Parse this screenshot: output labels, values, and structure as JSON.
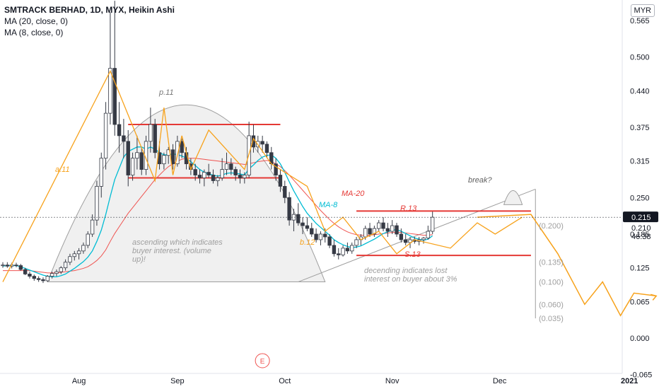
{
  "legend": {
    "title": "SMTRACK BERHAD, 1D, MYX, Heikin Ashi",
    "ma20": "MA (20, close, 0)",
    "ma8": "MA (8, close, 0)"
  },
  "currency_badge": "MYR",
  "price_labels": {
    "last_price": "0.215",
    "ma_value": "0.210",
    "countdown": "46:38"
  },
  "event_marker": "E",
  "colors": {
    "up_candle": "#ffffff",
    "down_candle": "#363a45",
    "ma8": "#00bcd4",
    "ma20": "#ef5350",
    "annotation_orange": "#f7a21b",
    "level_red": "#e53935",
    "gray": "#9e9e9e"
  },
  "chart_data": {
    "type": "candlestick",
    "series_type": "Heikin Ashi",
    "y_axis": {
      "range": [
        -0.065,
        0.6
      ],
      "ticks": [
        "0.565",
        "0.500",
        "0.440",
        "0.375",
        "0.315",
        "0.250",
        "0.185",
        "0.125",
        "0.065",
        "0.000",
        "-0.065"
      ]
    },
    "x_axis": {
      "labels": [
        "Aug",
        "Sep",
        "Oct",
        "Nov",
        "Dec",
        "2021"
      ],
      "label_index": [
        17,
        39,
        63,
        87,
        111,
        140
      ]
    },
    "candles": [
      [
        0.13,
        0.135,
        0.125,
        0.13
      ],
      [
        0.13,
        0.135,
        0.125,
        0.128
      ],
      [
        0.128,
        0.134,
        0.124,
        0.13
      ],
      [
        0.13,
        0.134,
        0.126,
        0.129
      ],
      [
        0.129,
        0.132,
        0.12,
        0.122
      ],
      [
        0.122,
        0.125,
        0.112,
        0.114
      ],
      [
        0.114,
        0.118,
        0.106,
        0.11
      ],
      [
        0.11,
        0.113,
        0.102,
        0.106
      ],
      [
        0.106,
        0.11,
        0.1,
        0.104
      ],
      [
        0.104,
        0.108,
        0.098,
        0.102
      ],
      [
        0.102,
        0.112,
        0.1,
        0.11
      ],
      [
        0.11,
        0.118,
        0.106,
        0.115
      ],
      [
        0.115,
        0.122,
        0.11,
        0.118
      ],
      [
        0.118,
        0.128,
        0.114,
        0.125
      ],
      [
        0.125,
        0.14,
        0.12,
        0.135
      ],
      [
        0.135,
        0.15,
        0.13,
        0.145
      ],
      [
        0.145,
        0.155,
        0.138,
        0.15
      ],
      [
        0.15,
        0.16,
        0.14,
        0.155
      ],
      [
        0.155,
        0.17,
        0.15,
        0.165
      ],
      [
        0.165,
        0.19,
        0.16,
        0.185
      ],
      [
        0.185,
        0.22,
        0.18,
        0.21
      ],
      [
        0.21,
        0.28,
        0.2,
        0.27
      ],
      [
        0.27,
        0.33,
        0.25,
        0.32
      ],
      [
        0.32,
        0.42,
        0.3,
        0.4
      ],
      [
        0.4,
        0.58,
        0.38,
        0.48
      ],
      [
        0.48,
        0.6,
        0.36,
        0.38
      ],
      [
        0.38,
        0.42,
        0.33,
        0.36
      ],
      [
        0.36,
        0.39,
        0.32,
        0.35
      ],
      [
        0.35,
        0.37,
        0.27,
        0.29
      ],
      [
        0.29,
        0.33,
        0.28,
        0.32
      ],
      [
        0.32,
        0.36,
        0.3,
        0.33
      ],
      [
        0.33,
        0.34,
        0.29,
        0.3
      ],
      [
        0.3,
        0.36,
        0.29,
        0.35
      ],
      [
        0.35,
        0.41,
        0.33,
        0.38
      ],
      [
        0.38,
        0.39,
        0.32,
        0.33
      ],
      [
        0.33,
        0.35,
        0.3,
        0.31
      ],
      [
        0.31,
        0.33,
        0.3,
        0.325
      ],
      [
        0.325,
        0.34,
        0.31,
        0.335
      ],
      [
        0.335,
        0.345,
        0.3,
        0.31
      ],
      [
        0.31,
        0.36,
        0.305,
        0.35
      ],
      [
        0.35,
        0.355,
        0.32,
        0.33
      ],
      [
        0.33,
        0.34,
        0.3,
        0.31
      ],
      [
        0.31,
        0.32,
        0.29,
        0.3
      ],
      [
        0.3,
        0.31,
        0.28,
        0.29
      ],
      [
        0.29,
        0.3,
        0.275,
        0.285
      ],
      [
        0.285,
        0.3,
        0.27,
        0.295
      ],
      [
        0.295,
        0.31,
        0.285,
        0.29
      ],
      [
        0.29,
        0.3,
        0.275,
        0.28
      ],
      [
        0.28,
        0.29,
        0.27,
        0.285
      ],
      [
        0.285,
        0.32,
        0.28,
        0.3
      ],
      [
        0.3,
        0.33,
        0.29,
        0.31
      ],
      [
        0.31,
        0.32,
        0.29,
        0.3
      ],
      [
        0.3,
        0.305,
        0.28,
        0.29
      ],
      [
        0.29,
        0.3,
        0.275,
        0.285
      ],
      [
        0.285,
        0.295,
        0.275,
        0.29
      ],
      [
        0.29,
        0.385,
        0.285,
        0.36
      ],
      [
        0.36,
        0.38,
        0.33,
        0.34
      ],
      [
        0.34,
        0.36,
        0.33,
        0.35
      ],
      [
        0.35,
        0.36,
        0.33,
        0.345
      ],
      [
        0.345,
        0.35,
        0.32,
        0.33
      ],
      [
        0.33,
        0.34,
        0.3,
        0.31
      ],
      [
        0.31,
        0.32,
        0.28,
        0.29
      ],
      [
        0.29,
        0.3,
        0.26,
        0.27
      ],
      [
        0.27,
        0.28,
        0.24,
        0.25
      ],
      [
        0.25,
        0.26,
        0.2,
        0.21
      ],
      [
        0.21,
        0.23,
        0.19,
        0.22
      ],
      [
        0.22,
        0.24,
        0.2,
        0.205
      ],
      [
        0.205,
        0.215,
        0.185,
        0.2
      ],
      [
        0.2,
        0.215,
        0.19,
        0.195
      ],
      [
        0.195,
        0.205,
        0.18,
        0.185
      ],
      [
        0.185,
        0.195,
        0.17,
        0.175
      ],
      [
        0.175,
        0.19,
        0.165,
        0.185
      ],
      [
        0.185,
        0.195,
        0.17,
        0.18
      ],
      [
        0.18,
        0.185,
        0.16,
        0.165
      ],
      [
        0.165,
        0.175,
        0.145,
        0.15
      ],
      [
        0.15,
        0.16,
        0.14,
        0.148
      ],
      [
        0.148,
        0.165,
        0.145,
        0.16
      ],
      [
        0.16,
        0.17,
        0.15,
        0.155
      ],
      [
        0.155,
        0.17,
        0.15,
        0.165
      ],
      [
        0.165,
        0.18,
        0.16,
        0.175
      ],
      [
        0.175,
        0.185,
        0.165,
        0.18
      ],
      [
        0.18,
        0.2,
        0.175,
        0.195
      ],
      [
        0.195,
        0.205,
        0.18,
        0.185
      ],
      [
        0.185,
        0.2,
        0.18,
        0.195
      ],
      [
        0.195,
        0.21,
        0.19,
        0.205
      ],
      [
        0.205,
        0.215,
        0.19,
        0.195
      ],
      [
        0.195,
        0.205,
        0.18,
        0.19
      ],
      [
        0.19,
        0.21,
        0.185,
        0.2
      ],
      [
        0.2,
        0.205,
        0.18,
        0.185
      ],
      [
        0.185,
        0.195,
        0.17,
        0.175
      ],
      [
        0.175,
        0.185,
        0.165,
        0.17
      ],
      [
        0.17,
        0.18,
        0.16,
        0.175
      ],
      [
        0.175,
        0.18,
        0.168,
        0.172
      ],
      [
        0.172,
        0.18,
        0.165,
        0.175
      ],
      [
        0.175,
        0.18,
        0.168,
        0.178
      ],
      [
        0.178,
        0.2,
        0.175,
        0.19
      ],
      [
        0.19,
        0.225,
        0.185,
        0.215
      ]
    ],
    "ma8": [
      0.128,
      0.129,
      0.129,
      0.129,
      0.127,
      0.124,
      0.121,
      0.118,
      0.115,
      0.112,
      0.11,
      0.109,
      0.109,
      0.111,
      0.114,
      0.119,
      0.124,
      0.13,
      0.136,
      0.144,
      0.155,
      0.172,
      0.192,
      0.22,
      0.252,
      0.282,
      0.302,
      0.322,
      0.332,
      0.336,
      0.34,
      0.34,
      0.336,
      0.34,
      0.336,
      0.33,
      0.326,
      0.326,
      0.328,
      0.326,
      0.324,
      0.32,
      0.314,
      0.307,
      0.3,
      0.295,
      0.292,
      0.29,
      0.288,
      0.29,
      0.293,
      0.294,
      0.293,
      0.292,
      0.29,
      0.301,
      0.308,
      0.316,
      0.322,
      0.325,
      0.326,
      0.32,
      0.31,
      0.295,
      0.278,
      0.262,
      0.248,
      0.234,
      0.222,
      0.213,
      0.204,
      0.197,
      0.19,
      0.183,
      0.175,
      0.17,
      0.166,
      0.163,
      0.161,
      0.162,
      0.164,
      0.168,
      0.172,
      0.176,
      0.181,
      0.186,
      0.189,
      0.192,
      0.193,
      0.19,
      0.186,
      0.182,
      0.178,
      0.176,
      0.174,
      0.176,
      0.182
    ],
    "ma20": [
      0.12,
      0.12,
      0.12,
      0.12,
      0.12,
      0.12,
      0.12,
      0.119,
      0.118,
      0.117,
      0.116,
      0.116,
      0.116,
      0.117,
      0.118,
      0.119,
      0.12,
      0.122,
      0.124,
      0.127,
      0.132,
      0.138,
      0.146,
      0.157,
      0.172,
      0.186,
      0.198,
      0.21,
      0.222,
      0.232,
      0.242,
      0.252,
      0.262,
      0.272,
      0.282,
      0.29,
      0.298,
      0.305,
      0.31,
      0.315,
      0.318,
      0.32,
      0.32,
      0.32,
      0.319,
      0.318,
      0.317,
      0.316,
      0.315,
      0.314,
      0.313,
      0.312,
      0.311,
      0.31,
      0.309,
      0.31,
      0.312,
      0.314,
      0.315,
      0.316,
      0.314,
      0.31,
      0.305,
      0.298,
      0.29,
      0.281,
      0.272,
      0.263,
      0.254,
      0.245,
      0.236,
      0.227,
      0.219,
      0.211,
      0.204,
      0.198,
      0.193,
      0.189,
      0.186,
      0.184,
      0.183,
      0.183,
      0.183,
      0.184,
      0.185,
      0.186,
      0.187,
      0.188,
      0.188,
      0.188,
      0.187,
      0.186,
      0.185,
      0.184,
      0.183,
      0.183,
      0.184
    ],
    "horizontal_levels": [
      {
        "y": 0.38,
        "i0": 28,
        "i1": 62
      },
      {
        "y": 0.285,
        "i0": 28,
        "i1": 62
      },
      {
        "y": 0.226,
        "i0": 79,
        "i1": 118
      },
      {
        "y": 0.147,
        "i0": 79,
        "i1": 118
      }
    ],
    "projection_path": {
      "x": [
        106,
        118,
        124,
        130,
        134,
        138,
        141,
        146
      ],
      "y": [
        0.215,
        0.22,
        0.15,
        0.06,
        0.1,
        0.04,
        0.08,
        0.075
      ]
    },
    "pattern_path": {
      "x": [
        0,
        24,
        34,
        36,
        38,
        40,
        42,
        46,
        54,
        56,
        60,
        68,
        72,
        76,
        80,
        84,
        88,
        92,
        100,
        106,
        110,
        116
      ],
      "y": [
        0.1,
        0.475,
        0.28,
        0.41,
        0.29,
        0.36,
        0.3,
        0.37,
        0.3,
        0.355,
        0.31,
        0.27,
        0.19,
        0.215,
        0.175,
        0.19,
        0.15,
        0.175,
        0.16,
        0.205,
        0.185,
        0.215
      ]
    },
    "arc": {
      "i0": 10,
      "i1": 72,
      "peak": 0.415,
      "base": 0.1
    },
    "break_marker": {
      "i": 114,
      "y": 0.26
    },
    "fib_labels": [
      {
        "text": "(0.200)",
        "y": 0.2
      },
      {
        "text": "(0.135)",
        "y": 0.135
      },
      {
        "text": "(0.100)",
        "y": 0.1
      },
      {
        "text": "(0.060)",
        "y": 0.06
      },
      {
        "text": "(0.035)",
        "y": 0.035
      }
    ],
    "annotations": {
      "a11": "a.11",
      "p11": "p.11",
      "b12": "b.12",
      "r13": "R.13",
      "s13": "S.13",
      "ma20_label": "MA-20",
      "ma8_label": "MA-8",
      "break_label": "break?",
      "ascending_note_1": "ascending which indicates",
      "ascending_note_2": "buyer interest. (volume",
      "ascending_note_3": "up)!",
      "descending_note_1": "decending indicates lost",
      "descending_note_2": "interest on buyer about 3%"
    }
  }
}
